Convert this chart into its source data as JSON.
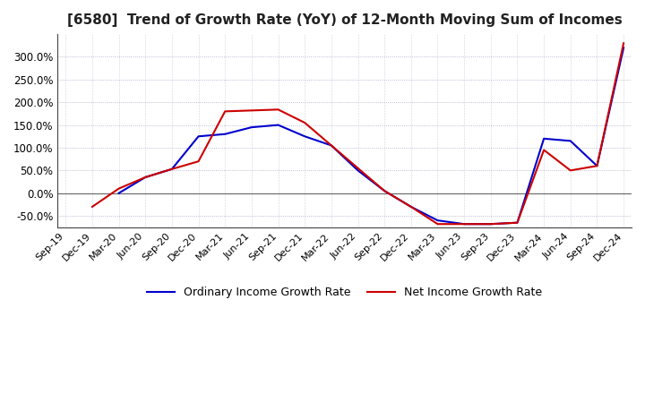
{
  "title": "[6580]  Trend of Growth Rate (YoY) of 12-Month Moving Sum of Incomes",
  "title_fontsize": 11,
  "ylim": [
    -75,
    350
  ],
  "yticks": [
    -50,
    0,
    50,
    100,
    150,
    200,
    250,
    300
  ],
  "background_color": "#ffffff",
  "plot_bg_color": "#ffffff",
  "grid_color": "#aaaacc",
  "ordinary_color": "#0000cc",
  "net_color": "#cc0000",
  "legend_ordinary": "Ordinary Income Growth Rate",
  "legend_net": "Net Income Growth Rate",
  "x_labels": [
    "Sep-19",
    "Dec-19",
    "Mar-20",
    "Jun-20",
    "Sep-20",
    "Dec-20",
    "Mar-21",
    "Jun-21",
    "Sep-21",
    "Dec-21",
    "Mar-22",
    "Jun-22",
    "Sep-22",
    "Dec-22",
    "Mar-23",
    "Jun-23",
    "Sep-23",
    "Dec-23",
    "Mar-24",
    "Jun-24",
    "Sep-24",
    "Dec-24"
  ],
  "ordinary_income": [
    null,
    null,
    0,
    35,
    53,
    125,
    130,
    145,
    150,
    125,
    105,
    50,
    5,
    -30,
    -60,
    -68,
    -68,
    -65,
    120,
    115,
    60,
    320
  ],
  "net_income": [
    null,
    -30,
    10,
    35,
    53,
    70,
    180,
    182,
    184,
    155,
    105,
    55,
    5,
    -30,
    -68,
    -68,
    -68,
    -65,
    95,
    50,
    60,
    330
  ]
}
